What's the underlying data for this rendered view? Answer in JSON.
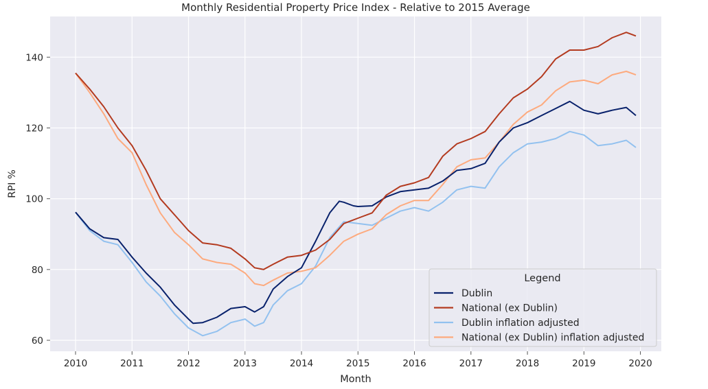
{
  "chart_data": {
    "type": "line",
    "title": "Monthly Residential Property Price Index - Relative to 2015 Average",
    "xlabel": "Month",
    "ylabel": "RPI %",
    "xlim": [
      2009.55,
      2020.37
    ],
    "ylim": [
      56.9,
      151.5
    ],
    "xticks": [
      2010,
      2011,
      2012,
      2013,
      2014,
      2015,
      2016,
      2017,
      2018,
      2019,
      2020
    ],
    "xtick_labels": [
      "2010",
      "2011",
      "2012",
      "2013",
      "2014",
      "2015",
      "2016",
      "2017",
      "2018",
      "2019",
      "2020"
    ],
    "yticks": [
      60,
      80,
      100,
      120,
      140
    ],
    "ytick_labels": [
      "60",
      "80",
      "100",
      "120",
      "140"
    ],
    "grid": true,
    "background": "#eaeaf2",
    "legend": {
      "title": "Legend",
      "placement": "lower-right"
    },
    "series": [
      {
        "name": "Dublin",
        "color": "#08216b",
        "x": [
          2010.0,
          2010.25,
          2010.5,
          2010.75,
          2011.0,
          2011.25,
          2011.5,
          2011.75,
          2012.0,
          2012.08,
          2012.25,
          2012.5,
          2012.75,
          2013.0,
          2013.17,
          2013.33,
          2013.5,
          2013.75,
          2014.0,
          2014.25,
          2014.5,
          2014.67,
          2014.75,
          2014.92,
          2015.0,
          2015.25,
          2015.5,
          2015.75,
          2016.0,
          2016.25,
          2016.5,
          2016.75,
          2017.0,
          2017.25,
          2017.5,
          2017.75,
          2018.0,
          2018.25,
          2018.5,
          2018.75,
          2019.0,
          2019.25,
          2019.5,
          2019.75,
          2019.92
        ],
        "y": [
          96.2,
          91.5,
          89.0,
          88.5,
          83.5,
          79.0,
          75.0,
          70.0,
          66.0,
          64.8,
          65.0,
          66.5,
          69.0,
          69.5,
          68.0,
          69.5,
          74.5,
          78.0,
          80.5,
          88.0,
          96.0,
          99.3,
          99.0,
          98.0,
          97.8,
          98.0,
          100.5,
          102.0,
          102.5,
          103.0,
          105.0,
          108.0,
          108.5,
          110.0,
          116.0,
          120.0,
          121.5,
          123.5,
          125.5,
          127.5,
          125.0,
          124.0,
          125.0,
          125.8,
          123.5
        ]
      },
      {
        "name": "National (ex Dublin)",
        "color": "#b33a1f",
        "x": [
          2010.0,
          2010.25,
          2010.5,
          2010.75,
          2011.0,
          2011.25,
          2011.5,
          2011.75,
          2012.0,
          2012.25,
          2012.5,
          2012.75,
          2013.0,
          2013.17,
          2013.33,
          2013.5,
          2013.75,
          2014.0,
          2014.25,
          2014.5,
          2014.75,
          2015.0,
          2015.25,
          2015.5,
          2015.75,
          2016.0,
          2016.25,
          2016.5,
          2016.75,
          2017.0,
          2017.25,
          2017.5,
          2017.75,
          2018.0,
          2018.25,
          2018.5,
          2018.75,
          2019.0,
          2019.25,
          2019.5,
          2019.75,
          2019.92
        ],
        "y": [
          135.5,
          131.0,
          126.0,
          120.0,
          115.0,
          108.0,
          100.0,
          95.5,
          91.0,
          87.5,
          87.0,
          86.0,
          83.0,
          80.5,
          80.0,
          81.5,
          83.5,
          84.0,
          85.5,
          88.5,
          93.0,
          94.5,
          96.0,
          101.0,
          103.5,
          104.5,
          106.0,
          112.0,
          115.5,
          117.0,
          119.0,
          124.0,
          128.5,
          131.0,
          134.5,
          139.5,
          142.0,
          142.0,
          143.0,
          145.5,
          147.0,
          146.0
        ]
      },
      {
        "name": "Dublin inflation adjusted",
        "color": "#92c1ef",
        "x": [
          2010.0,
          2010.25,
          2010.5,
          2010.75,
          2011.0,
          2011.25,
          2011.5,
          2011.75,
          2012.0,
          2012.25,
          2012.5,
          2012.75,
          2013.0,
          2013.17,
          2013.33,
          2013.5,
          2013.75,
          2014.0,
          2014.25,
          2014.5,
          2014.75,
          2015.0,
          2015.25,
          2015.5,
          2015.75,
          2016.0,
          2016.25,
          2016.5,
          2016.75,
          2017.0,
          2017.25,
          2017.5,
          2017.75,
          2018.0,
          2018.25,
          2018.5,
          2018.75,
          2019.0,
          2019.25,
          2019.5,
          2019.75,
          2019.92
        ],
        "y": [
          96.2,
          91.0,
          88.0,
          87.0,
          82.0,
          76.5,
          72.5,
          67.5,
          63.5,
          61.3,
          62.5,
          65.0,
          66.0,
          64.0,
          65.0,
          70.0,
          74.0,
          76.0,
          81.0,
          89.0,
          93.5,
          93.0,
          92.5,
          94.5,
          96.5,
          97.5,
          96.5,
          99.0,
          102.5,
          103.5,
          103.0,
          109.0,
          113.0,
          115.5,
          116.0,
          117.0,
          119.0,
          118.0,
          115.0,
          115.5,
          116.5,
          114.5
        ]
      },
      {
        "name": "National (ex Dublin) inflation adjusted",
        "color": "#fdaa7e",
        "x": [
          2010.0,
          2010.25,
          2010.5,
          2010.75,
          2011.0,
          2011.25,
          2011.5,
          2011.75,
          2012.0,
          2012.25,
          2012.5,
          2012.75,
          2013.0,
          2013.17,
          2013.33,
          2013.5,
          2013.75,
          2014.0,
          2014.25,
          2014.5,
          2014.75,
          2015.0,
          2015.25,
          2015.5,
          2015.75,
          2016.0,
          2016.25,
          2016.5,
          2016.75,
          2017.0,
          2017.25,
          2017.5,
          2017.75,
          2018.0,
          2018.25,
          2018.5,
          2018.75,
          2019.0,
          2019.25,
          2019.5,
          2019.75,
          2019.92
        ],
        "y": [
          135.5,
          130.0,
          124.0,
          117.0,
          113.0,
          104.0,
          96.0,
          90.5,
          87.0,
          83.0,
          82.0,
          81.5,
          79.0,
          76.0,
          75.5,
          77.0,
          79.0,
          79.5,
          80.5,
          84.0,
          88.0,
          90.0,
          91.5,
          95.5,
          98.0,
          99.5,
          99.5,
          104.0,
          109.0,
          111.0,
          111.5,
          116.0,
          121.0,
          124.5,
          126.5,
          130.5,
          133.0,
          133.5,
          132.5,
          135.0,
          136.0,
          135.0
        ]
      }
    ]
  }
}
